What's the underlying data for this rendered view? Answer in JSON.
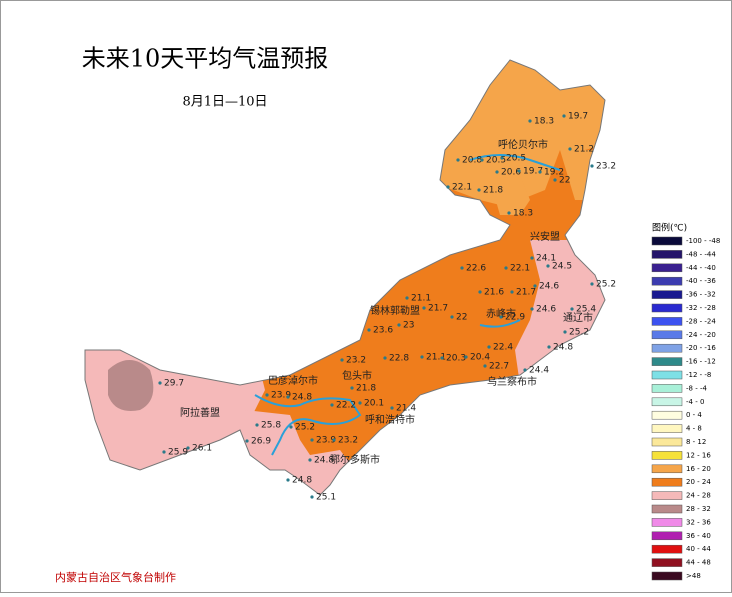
{
  "title": "未来10天平均气温预报",
  "subtitle": "8月1日—10日",
  "legend_title": "图例(℃)",
  "legend": [
    {
      "label": "-100 - -48",
      "color": "#0a0a3a"
    },
    {
      "label": "-48 - -44",
      "color": "#24146a"
    },
    {
      "label": "-44 - -40",
      "color": "#3a2090"
    },
    {
      "label": "-40 - -36",
      "color": "#3c3cb0"
    },
    {
      "label": "-36 - -32",
      "color": "#1a1a90"
    },
    {
      "label": "-32 - -28",
      "color": "#2a2ad0"
    },
    {
      "label": "-28 - -24",
      "color": "#3c52f0"
    },
    {
      "label": "-24 - -20",
      "color": "#5a7ae8"
    },
    {
      "label": "-20 - -16",
      "color": "#7fa2e6"
    },
    {
      "label": "-16 - -12",
      "color": "#2e8a8a"
    },
    {
      "label": "-12 - -8",
      "color": "#7ee0e6"
    },
    {
      "label": "-8 - -4",
      "color": "#a8f0d8"
    },
    {
      "label": "-4 - 0",
      "color": "#c8f5e6"
    },
    {
      "label": "0 - 4",
      "color": "#fffde0"
    },
    {
      "label": "4 - 8",
      "color": "#fff7c0"
    },
    {
      "label": "8 - 12",
      "color": "#fbe89a"
    },
    {
      "label": "12 - 16",
      "color": "#f6e23a"
    },
    {
      "label": "16 - 20",
      "color": "#f5a54a"
    },
    {
      "label": "20 - 24",
      "color": "#ef7d1c"
    },
    {
      "label": "24 - 28",
      "color": "#f5b9b9"
    },
    {
      "label": "28 - 32",
      "color": "#b98a8a"
    },
    {
      "label": "32 - 36",
      "color": "#f08ae8"
    },
    {
      "label": "36 - 40",
      "color": "#b020b0"
    },
    {
      "label": "40 - 44",
      "color": "#e01010"
    },
    {
      "label": "44 - 48",
      "color": "#901020"
    },
    {
      "label": ">48",
      "color": "#3a0a20"
    }
  ],
  "regions": [
    "呼伦贝尔市",
    "兴安盟",
    "通辽市",
    "赤峰市",
    "锡林郭勒盟",
    "乌兰察布市",
    "包头市",
    "巴彦淖尔市",
    "呼和浩特市",
    "鄂尔多斯市",
    "阿拉善盟"
  ],
  "stations": [
    18.3,
    19.7,
    21.2,
    23.2,
    20.8,
    20.5,
    20.5,
    20.6,
    19.7,
    19.2,
    22.1,
    21.8,
    22,
    18.3,
    24.1,
    24.5,
    22.6,
    22.1,
    21.6,
    21.7,
    24.6,
    25.2,
    25.4,
    21.1,
    21.7,
    23.6,
    23,
    22,
    22.9,
    24.6,
    25.2,
    24.8,
    23.2,
    22.8,
    21.1,
    20.3,
    20.4,
    22.7,
    24.4,
    22.4,
    23.9,
    21.8,
    24.8,
    22.2,
    20.1,
    21.4,
    25.8,
    25.2,
    23.9,
    23.2,
    26.9,
    26.1,
    25.9,
    29.7,
    24.8,
    25.1,
    24.8
  ],
  "credit": "内蒙古自治区气象台制作"
}
